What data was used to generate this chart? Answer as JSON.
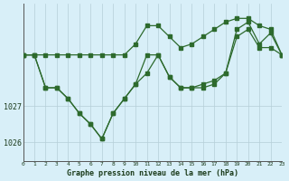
{
  "xlabel": "Graphe pression niveau de la mer (hPa)",
  "x": [
    0,
    1,
    2,
    3,
    4,
    5,
    6,
    7,
    8,
    9,
    10,
    11,
    12,
    13,
    14,
    15,
    16,
    17,
    18,
    19,
    20,
    21,
    22,
    23
  ],
  "y_top": [
    1028.4,
    1028.4,
    1028.4,
    1028.4,
    1028.4,
    1028.4,
    1028.4,
    1028.4,
    1028.4,
    1028.4,
    1028.7,
    1029.2,
    1029.2,
    1028.9,
    1028.6,
    1028.7,
    1028.9,
    1029.1,
    1029.3,
    1029.4,
    1029.4,
    1029.2,
    1029.1,
    1028.4
  ],
  "y_mid": [
    1028.4,
    1028.4,
    1027.5,
    1027.5,
    1027.2,
    1026.8,
    1026.5,
    1026.1,
    1026.8,
    1027.2,
    1027.6,
    1028.4,
    1028.4,
    1027.8,
    1027.5,
    1027.5,
    1027.6,
    1027.7,
    1027.9,
    1029.1,
    1029.3,
    1028.7,
    1029.0,
    1028.4
  ],
  "y_bot": [
    1028.4,
    1028.4,
    1027.5,
    1027.5,
    1027.2,
    1026.8,
    1026.5,
    1026.1,
    1026.8,
    1027.2,
    1027.6,
    1027.9,
    1028.4,
    1027.8,
    1027.5,
    1027.5,
    1027.5,
    1027.6,
    1027.9,
    1028.9,
    1029.1,
    1028.6,
    1028.6,
    1028.4
  ],
  "line_color": "#2d6a2d",
  "bg_color": "#d8eff8",
  "grid_color": "#b5cfd8",
  "ytick_labels": [
    "1026",
    "1027"
  ],
  "ytick_values": [
    1026.0,
    1027.0
  ],
  "ylim": [
    1025.5,
    1029.8
  ],
  "xlim": [
    0,
    23
  ]
}
